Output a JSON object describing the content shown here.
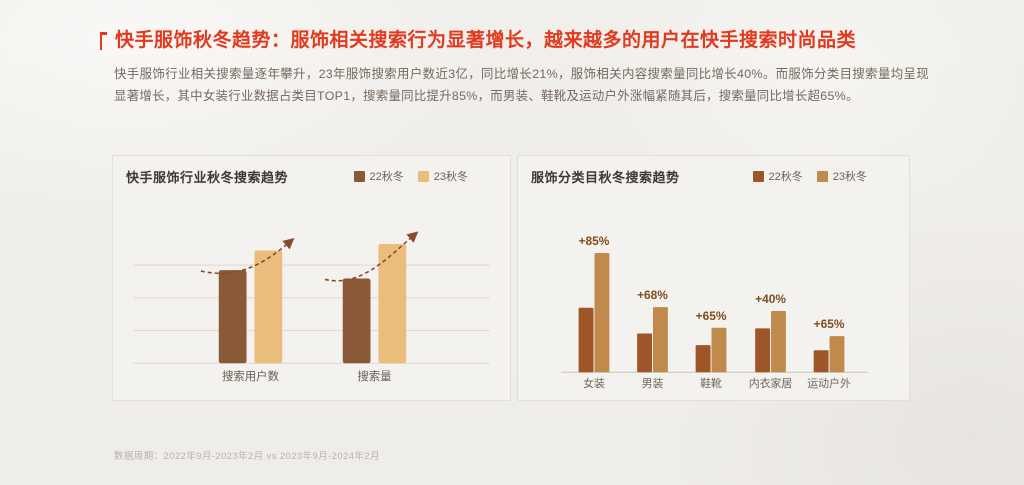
{
  "page": {
    "title": "快手服饰秋冬趋势：服饰相关搜索行为显著增长，越来越多的用户在快手搜索时尚品类",
    "description": "快手服饰行业相关搜索量逐年攀升，23年服饰搜索用户数近3亿，同比增长21%，服饰相关内容搜索量同比增长40%。而服饰分类目搜索量均呈现显著增长，其中女装行业数据占类目TOP1，搜索量同比提升85%，而男装、鞋靴及运动户外涨幅紧随其后，搜索量同比增长超65%。",
    "footnote": "数据周期：2022年9月-2023年2月 vs 2023年9月-2024年2月",
    "accent_color": "#e23a1e"
  },
  "cards": [
    {
      "title": "快手服饰行业秋冬搜索趋势"
    },
    {
      "title": "服饰分类目秋冬搜索趋势"
    }
  ],
  "chart_data": [
    {
      "type": "bar",
      "title": "快手服饰行业秋冬搜索趋势",
      "categories": [
        "搜索用户数",
        "搜索量"
      ],
      "series": [
        {
          "name": "22秋冬",
          "color": "#8a5a38",
          "values": [
            100,
            91
          ]
        },
        {
          "name": "23秋冬",
          "color": "#eabd7c",
          "values": [
            121,
            128
          ]
        }
      ],
      "value_note": "relative index estimated from bar heights; 23秋冬 vs 22秋冬 growth ≈ +21% users, +40% volume",
      "legend_position": "top-right",
      "grid": true,
      "trend_arrows": true,
      "arrow_color": "#8a4a2b",
      "label_color": "#655d53"
    },
    {
      "type": "bar",
      "title": "服饰分类目秋冬搜索趋势",
      "categories": [
        "女装",
        "男装",
        "鞋靴",
        "内衣家居",
        "运动户外"
      ],
      "series": [
        {
          "name": "22秋冬",
          "color": "#9e5527",
          "values": [
            100,
            60,
            42,
            68,
            34
          ]
        },
        {
          "name": "23秋冬",
          "color": "#c08a4c",
          "values": [
            185,
            101,
            69,
            95,
            56
          ]
        }
      ],
      "annotations": [
        "+85%",
        "+68%",
        "+65%",
        "+40%",
        "+65%"
      ],
      "annotation_color": "#7e4d1d",
      "value_note": "relative index estimated from bar heights; annotations are YoY growth",
      "legend_position": "top-right",
      "grid": false,
      "label_color": "#6d665c"
    }
  ]
}
